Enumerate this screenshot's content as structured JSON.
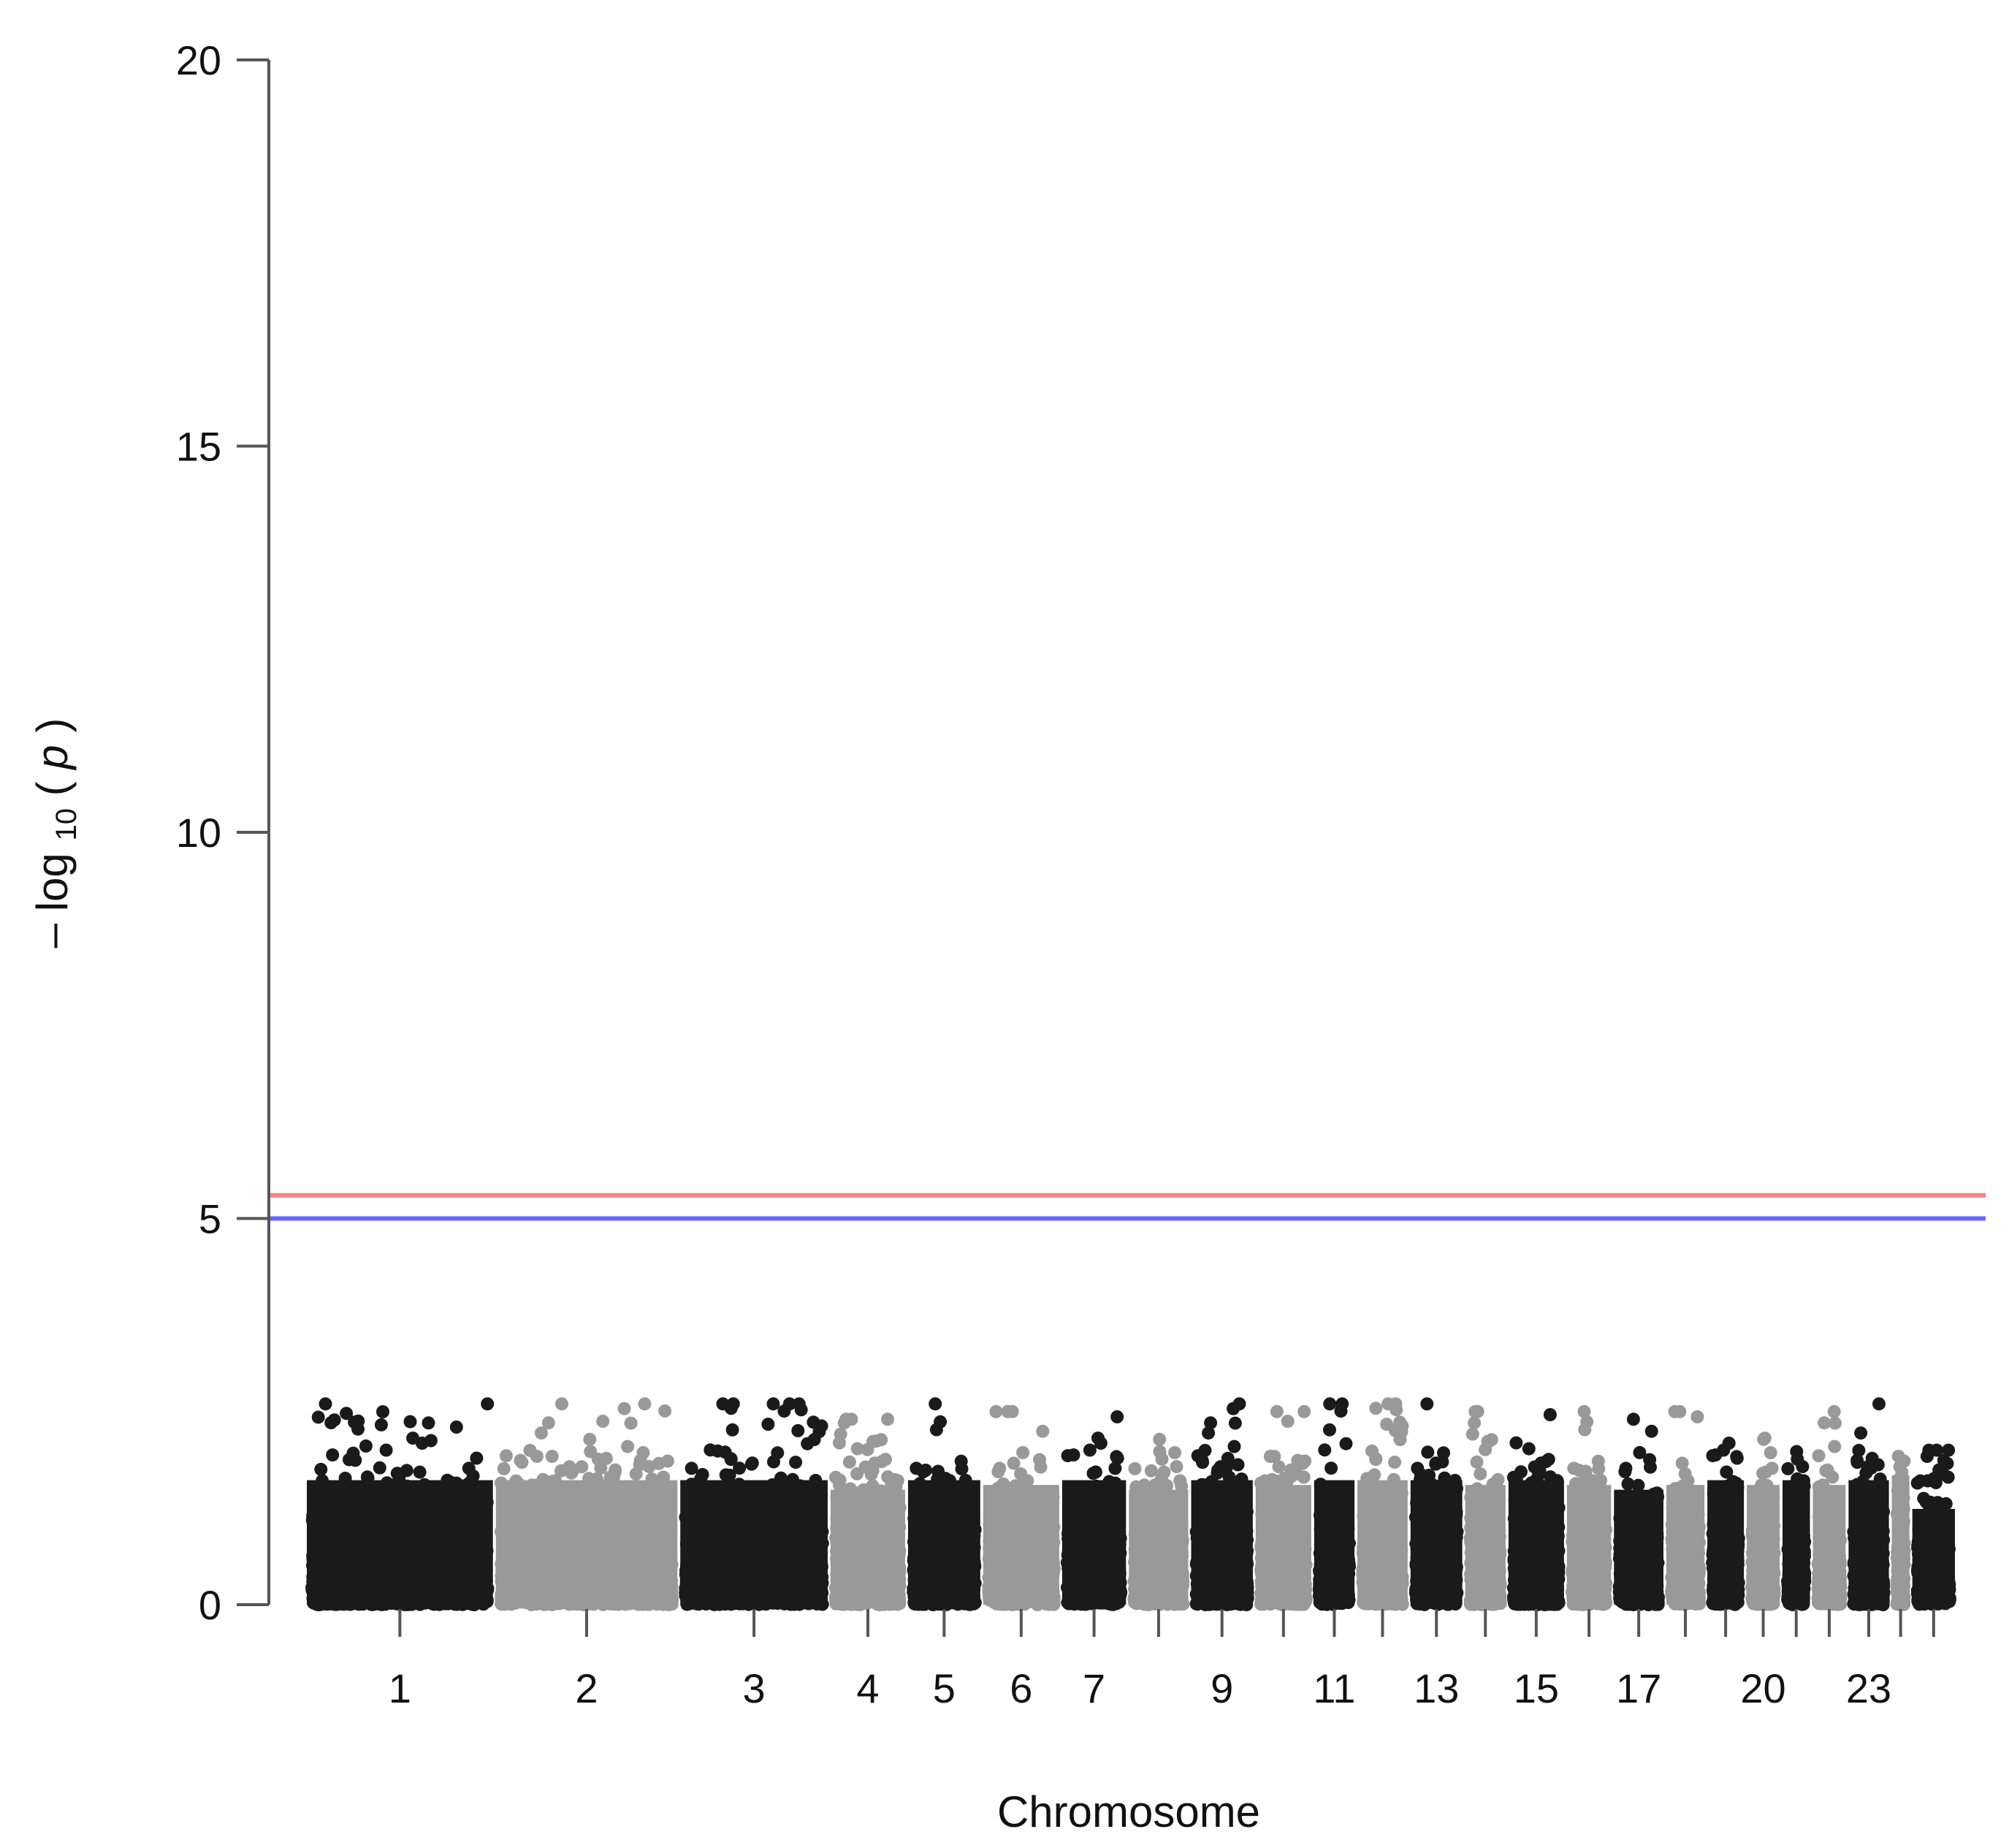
{
  "chart_data": {
    "type": "scatter",
    "subtype": "manhattan",
    "title": "",
    "xlabel": "Chromosome",
    "ylabel": {
      "prefix": "– log",
      "subscript": "10",
      "suffix_open": "(",
      "italic": "p",
      "suffix_close": ")"
    },
    "ylim": [
      0,
      20
    ],
    "yticks": [
      0,
      5,
      10,
      15,
      20
    ],
    "grid": false,
    "legend": "none",
    "chromosomes": [
      {
        "chr": 1,
        "label": "1",
        "size": 249,
        "max": 2.6
      },
      {
        "chr": 2,
        "label": "2",
        "size": 243,
        "max": 2.6
      },
      {
        "chr": 3,
        "label": "3",
        "size": 198,
        "max": 2.6
      },
      {
        "chr": 4,
        "label": "4",
        "size": 102,
        "max": 2.4
      },
      {
        "chr": 5,
        "label": "5",
        "size": 99,
        "max": 2.6
      },
      {
        "chr": 6,
        "label": "6",
        "size": 104,
        "max": 2.5
      },
      {
        "chr": 7,
        "label": "7",
        "size": 88,
        "max": 2.6
      },
      {
        "chr": 8,
        "label": "",
        "size": 82,
        "max": 2.4
      },
      {
        "chr": 9,
        "label": "9",
        "size": 85,
        "max": 2.6
      },
      {
        "chr": 10,
        "label": "",
        "size": 77,
        "max": 2.5
      },
      {
        "chr": 11,
        "label": "11",
        "size": 57,
        "max": 2.6
      },
      {
        "chr": 12,
        "label": "",
        "size": 70,
        "max": 2.6
      },
      {
        "chr": 13,
        "label": "13",
        "size": 72,
        "max": 2.6
      },
      {
        "chr": 14,
        "label": "",
        "size": 57,
        "max": 2.5
      },
      {
        "chr": 15,
        "label": "15",
        "size": 77,
        "max": 2.6
      },
      {
        "chr": 16,
        "label": "",
        "size": 62,
        "max": 2.5
      },
      {
        "chr": 17,
        "label": "17",
        "size": 69,
        "max": 2.4
      },
      {
        "chr": 18,
        "label": "",
        "size": 54,
        "max": 2.5
      },
      {
        "chr": 19,
        "label": "",
        "size": 52,
        "max": 2.6
      },
      {
        "chr": 20,
        "label": "20",
        "size": 47,
        "max": 2.5
      },
      {
        "chr": 21,
        "label": "",
        "size": 40,
        "max": 2.6
      },
      {
        "chr": 22,
        "label": "",
        "size": 47,
        "max": 2.5
      },
      {
        "chr": 23,
        "label": "23",
        "size": 57,
        "max": 2.6
      },
      {
        "chr": 24,
        "label": "",
        "size": 27,
        "max": 2.7
      },
      {
        "chr": 25,
        "label": "",
        "size": 60,
        "max": 2.0
      }
    ],
    "series_colors": [
      "#1a1a1a",
      "#999999"
    ],
    "thresholds": [
      {
        "value": 5.3,
        "color": "#ff8080"
      },
      {
        "value": 5.0,
        "color": "#6666ff"
      }
    ]
  }
}
